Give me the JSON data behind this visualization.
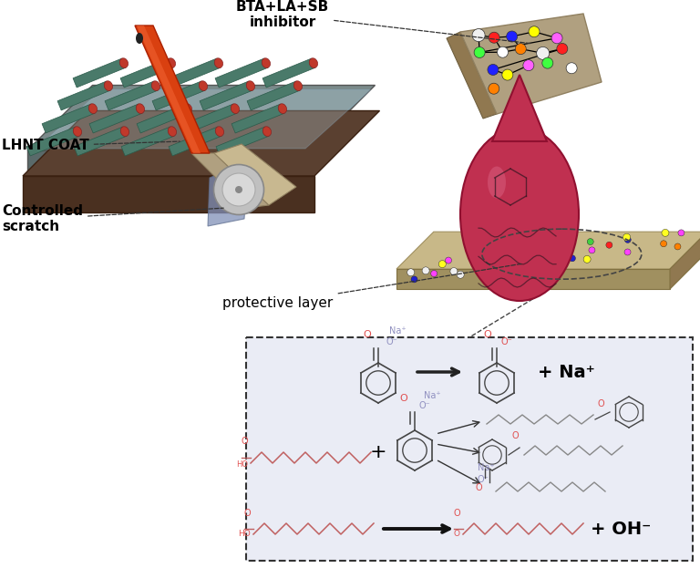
{
  "background_color": "#ffffff",
  "lower_box_bg": "#eaecf5",
  "lower_box_border": "#333333",
  "labels": {
    "bta_inhibitor": "BTA+LA+SB\ninhibitor",
    "lhnt_coat": "LHNT COAT",
    "controlled_scratch": "Controlled\nscratch",
    "protective_layer": "protective layer",
    "na_plus": "+ Na⁺",
    "oh_minus": "+ OH⁻"
  },
  "figsize": [
    7.68,
    6.23
  ],
  "dpi": 100,
  "colors": {
    "tube_body": "#4a7a6a",
    "tube_end": "#c0392b",
    "handle_color": "#d94010",
    "drop_color": "#c03050",
    "plat_top": "#8a8a8a",
    "plat_side": "#6a6a6a",
    "plat_base": "#5a4030",
    "plat2_top": "#c8b888",
    "plat2_side": "#a09060",
    "glass_color": "#c0e0f0",
    "benzene_color": "#444444",
    "chain_color": "#888888",
    "chain_red": "#c06060",
    "highlight_red": "#e05050",
    "na_color": "#9090c0",
    "dashed_line": "#555555"
  }
}
